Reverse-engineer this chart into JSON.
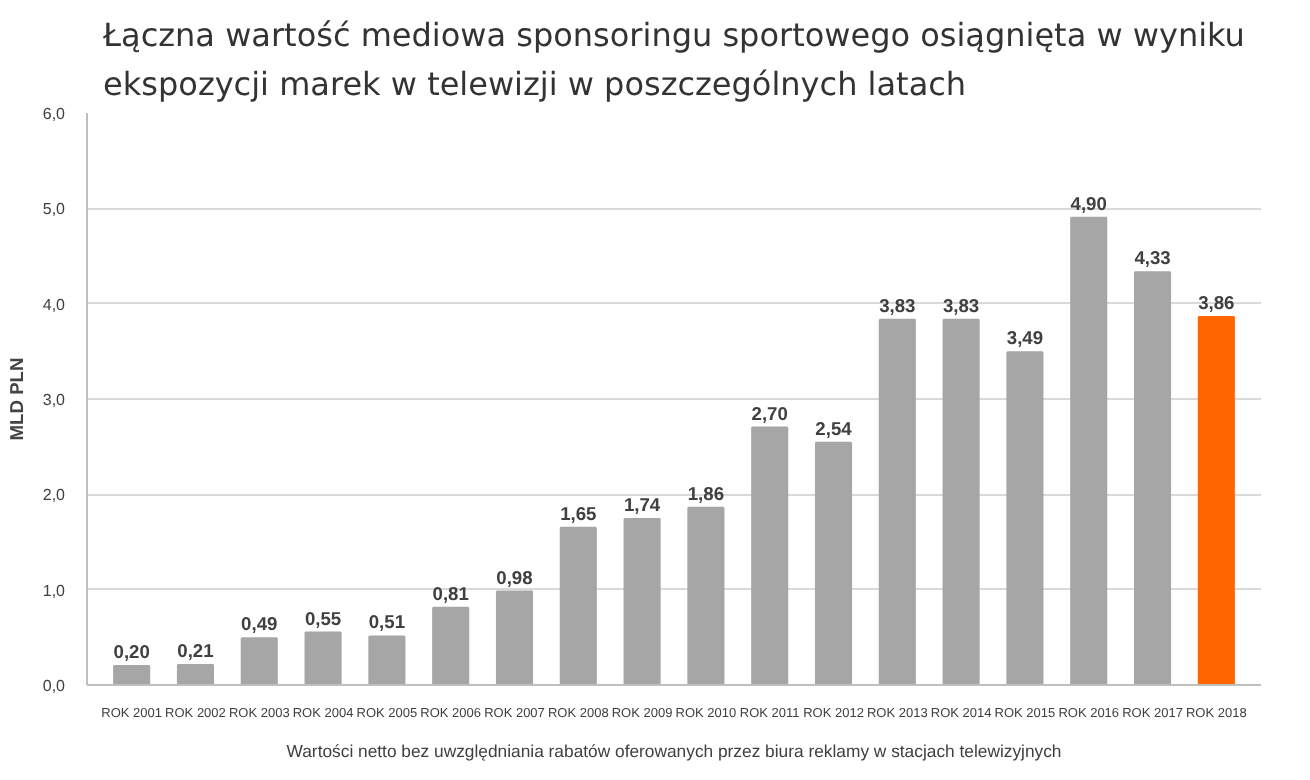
{
  "chart_data": {
    "type": "bar",
    "title": "Łączna wartość mediowa sponsoringu sportowego osiągnięta w wyniku\nekspozycji marek w telewizji w poszczególnych latach",
    "ylabel": "MLD PLN",
    "categories": [
      "ROK 2001",
      "ROK 2002",
      "ROK 2003",
      "ROK 2004",
      "ROK 2005",
      "ROK 2006",
      "ROK 2007",
      "ROK 2008",
      "ROK 2009",
      "ROK 2010",
      "ROK 2011",
      "ROK 2012",
      "ROK 2013",
      "ROK 2014",
      "ROK 2015",
      "ROK 2016",
      "ROK 2017",
      "ROK 2018"
    ],
    "values": [
      0.2,
      0.21,
      0.49,
      0.55,
      0.51,
      0.81,
      0.98,
      1.65,
      1.74,
      1.86,
      2.7,
      2.54,
      3.83,
      3.83,
      3.49,
      4.9,
      4.33,
      3.86
    ],
    "value_labels": [
      "0,20",
      "0,21",
      "0,49",
      "0,55",
      "0,51",
      "0,81",
      "0,98",
      "1,65",
      "1,74",
      "1,86",
      "2,70",
      "2,54",
      "3,83",
      "3,83",
      "3,49",
      "4,90",
      "4,33",
      "3,86"
    ],
    "colors": [
      "#a6a6a6",
      "#a6a6a6",
      "#a6a6a6",
      "#a6a6a6",
      "#a6a6a6",
      "#a6a6a6",
      "#a6a6a6",
      "#a6a6a6",
      "#a6a6a6",
      "#a6a6a6",
      "#a6a6a6",
      "#a6a6a6",
      "#a6a6a6",
      "#a6a6a6",
      "#a6a6a6",
      "#a6a6a6",
      "#a6a6a6",
      "#ff6600"
    ],
    "ylim": [
      0,
      6
    ],
    "yticks": [
      {
        "value": 0,
        "label": "0,0"
      },
      {
        "value": 1,
        "label": "1,0"
      },
      {
        "value": 2,
        "label": "2,0"
      },
      {
        "value": 3,
        "label": "3,0"
      },
      {
        "value": 4,
        "label": "4,0"
      },
      {
        "value": 5,
        "label": "5,0"
      },
      {
        "value": 6,
        "label": "6,0"
      }
    ],
    "grid": "y",
    "annotations": [
      "Wartości netto bez uwzględniania rabatów oferowanych przez biura reklamy w stacjach telewizyjnych"
    ]
  }
}
